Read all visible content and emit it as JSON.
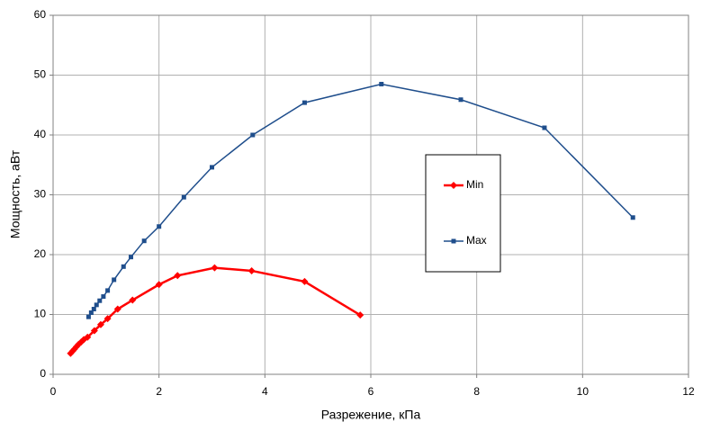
{
  "chart_data": {
    "type": "scatter",
    "x_label": "Разрежение, кПа",
    "y_label": "Мощность, аВт",
    "xlim": [
      0,
      12
    ],
    "xticks": [
      0,
      2,
      4,
      6,
      8,
      10,
      12
    ],
    "ylim": [
      0,
      60
    ],
    "yticks": [
      0,
      10,
      20,
      30,
      40,
      50,
      60
    ],
    "grid": true,
    "legend": "right",
    "series": [
      {
        "name": "Min",
        "color": "#ff0000",
        "marker": "diamond",
        "x": [
          0.33,
          0.37,
          0.4,
          0.44,
          0.48,
          0.53,
          0.58,
          0.65,
          0.78,
          0.9,
          1.03,
          1.22,
          1.5,
          2.0,
          2.35,
          3.05,
          3.75,
          4.75,
          5.8
        ],
        "values": [
          3.5,
          3.9,
          4.2,
          4.6,
          5.0,
          5.4,
          5.8,
          6.2,
          7.3,
          8.3,
          9.3,
          10.9,
          12.4,
          15.0,
          16.5,
          17.8,
          17.3,
          15.5,
          9.9
        ]
      },
      {
        "name": "Max",
        "color": "#1f4e8c",
        "marker": "square",
        "x": [
          0.67,
          0.72,
          0.77,
          0.82,
          0.88,
          0.95,
          1.03,
          1.15,
          1.33,
          1.47,
          1.72,
          2.0,
          2.47,
          3.0,
          3.77,
          4.75,
          6.2,
          7.7,
          9.28,
          10.95
        ],
        "values": [
          9.6,
          10.3,
          10.9,
          11.6,
          12.3,
          13.0,
          14.0,
          15.8,
          18.0,
          19.6,
          22.3,
          24.7,
          29.6,
          34.6,
          40.0,
          45.4,
          48.5,
          45.9,
          41.2,
          26.2
        ]
      }
    ]
  }
}
